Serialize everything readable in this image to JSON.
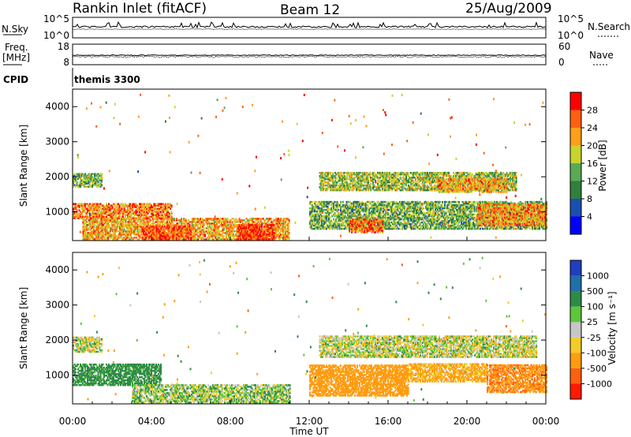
{
  "header": {
    "station": "Rankin Inlet (fitACF)",
    "beam": "Beam 12",
    "date": "25/Aug/2009"
  },
  "nsky_panel": {
    "left_label": "N.Sky",
    "left_ticks": [
      "10^5",
      "10^0"
    ],
    "right_label": "N.Search",
    "right_ticks": [
      "10^5",
      "10^0"
    ]
  },
  "freq_panel": {
    "left_label_1": "Freq.",
    "left_label_2": "[MHz]",
    "left_ticks": [
      "18",
      "8"
    ],
    "right_label": "Nave",
    "right_ticks": [
      "60",
      "0"
    ]
  },
  "cpid_panel": {
    "label": "CPID",
    "mode": "themis 3300"
  },
  "power_scale": {
    "label": "Power [dB]",
    "ticks": [
      "28",
      "24",
      "20",
      "16",
      "12",
      "8",
      "4"
    ],
    "colors": [
      "#0000ff",
      "#1a4fb0",
      "#2f7f3f",
      "#5aaa55",
      "#c8d42c",
      "#ff9e18",
      "#ff6010",
      "#ff0000"
    ]
  },
  "velocity_scale": {
    "label": "Velocity [m s⁻¹]",
    "ticks": [
      "1000",
      "500",
      "100",
      "25",
      "-25",
      "-100",
      "-500",
      "-1000"
    ],
    "colors": [
      "#1f3fbf",
      "#1f6fa8",
      "#2e8b46",
      "#5cc73a",
      "#c6c6c6",
      "#f4cc25",
      "#ff9c10",
      "#ff6010",
      "#ff1a00"
    ]
  },
  "x_axis": {
    "label": "Time UT",
    "ticks": [
      "00:00",
      "04:00",
      "08:00",
      "12:00",
      "16:00",
      "20:00",
      "00:00"
    ]
  },
  "y_axis": {
    "label": "Slant Range [km]",
    "ticks": [
      "4000",
      "3000",
      "2000",
      "1000"
    ]
  },
  "chart_data": [
    {
      "type": "heatmap",
      "name": "power",
      "x": "time UT (hours)",
      "xlim": [
        0,
        24
      ],
      "ylim": [
        180,
        4500
      ],
      "zlim": [
        0,
        32
      ],
      "bands": [
        {
          "t0": 0.5,
          "t1": 11.0,
          "r0": 200,
          "r1": 800,
          "z": 22
        },
        {
          "t0": 0.0,
          "t1": 5.0,
          "r0": 800,
          "r1": 1250,
          "z": 24
        },
        {
          "t0": 0.0,
          "t1": 1.5,
          "r0": 1700,
          "r1": 2100,
          "z": 14
        },
        {
          "t0": 3.5,
          "t1": 6.0,
          "r0": 200,
          "r1": 600,
          "z": 27
        },
        {
          "t0": 8.3,
          "t1": 10.2,
          "r0": 200,
          "r1": 650,
          "z": 29
        },
        {
          "t0": 12.0,
          "t1": 24.0,
          "r0": 500,
          "r1": 1300,
          "z": 14
        },
        {
          "t0": 14.0,
          "t1": 15.7,
          "r0": 400,
          "r1": 800,
          "z": 26
        },
        {
          "t0": 12.5,
          "t1": 22.5,
          "r0": 1600,
          "r1": 2100,
          "z": 16
        },
        {
          "t0": 18.5,
          "t1": 22.0,
          "r0": 1550,
          "r1": 1950,
          "z": 22
        },
        {
          "t0": 20.5,
          "t1": 24.0,
          "r0": 600,
          "r1": 1200,
          "z": 23
        }
      ]
    },
    {
      "type": "heatmap",
      "name": "velocity",
      "x": "time UT (hours)",
      "xlim": [
        0,
        24
      ],
      "ylim": [
        180,
        4500
      ],
      "bands": [
        {
          "t0": 0.0,
          "t1": 1.5,
          "r0": 1650,
          "r1": 2100,
          "v": 0
        },
        {
          "t0": 0.0,
          "t1": 4.5,
          "r0": 700,
          "r1": 1300,
          "v": 200
        },
        {
          "t0": 3.0,
          "t1": 11.0,
          "r0": 200,
          "r1": 700,
          "v": 40
        },
        {
          "t0": 12.0,
          "t1": 17.0,
          "r0": 400,
          "r1": 1300,
          "v": -300
        },
        {
          "t0": 12.5,
          "t1": 23.5,
          "r0": 1500,
          "r1": 2100,
          "v": 0
        },
        {
          "t0": 17.0,
          "t1": 21.0,
          "r0": 800,
          "r1": 1300,
          "v": -150
        },
        {
          "t0": 21.0,
          "t1": 24.0,
          "r0": 500,
          "r1": 1300,
          "v": -450
        }
      ]
    }
  ]
}
